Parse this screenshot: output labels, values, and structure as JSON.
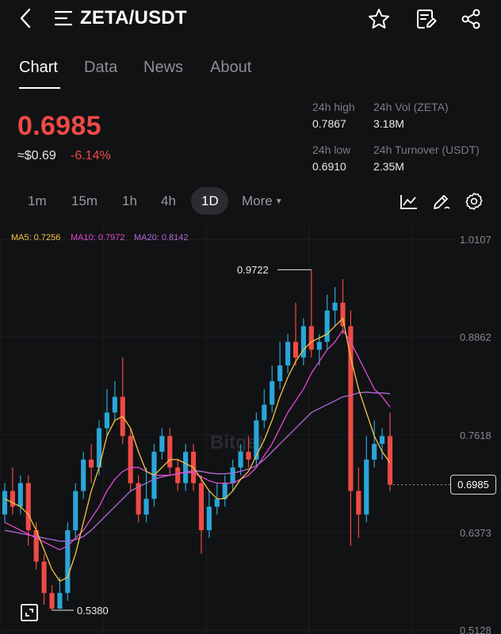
{
  "header": {
    "pair": "ZETA/USDT",
    "icons": [
      "back-icon",
      "menu-icon",
      "star-icon",
      "note-icon",
      "share-icon"
    ]
  },
  "tabs": [
    {
      "label": "Chart",
      "active": true
    },
    {
      "label": "Data",
      "active": false
    },
    {
      "label": "News",
      "active": false
    },
    {
      "label": "About",
      "active": false
    }
  ],
  "ticker": {
    "price": "0.6985",
    "fiat": "≈$0.69",
    "change": "-6.14%",
    "high_label": "24h high",
    "high_value": "0.7867",
    "vol_label": "24h Vol (ZETA)",
    "vol_value": "3.18M",
    "low_label": "24h low",
    "low_value": "0.6910",
    "turnover_label": "24h Turnover (USDT)",
    "turnover_value": "2.35M"
  },
  "timeframes": [
    "1m",
    "15m",
    "1h",
    "4h",
    "1D",
    "More"
  ],
  "selected_timeframe": "1D",
  "chart": {
    "ma5": "MA5: 0.7256",
    "ma10": "MA10: 0.7972",
    "ma20": "MA20: 0.8142",
    "y_labels": [
      "1.0107",
      "0.8862",
      "0.7618",
      "0.6373",
      "0.5128"
    ],
    "current_price": "0.6985",
    "high_marker": "0.9722",
    "low_marker": "0.5380",
    "watermark": "Bitget"
  },
  "chart_data": {
    "type": "candlestick",
    "y_range": [
      0.5128,
      1.0107
    ],
    "candles": [
      [
        0.66,
        0.69,
        0.65,
        0.7
      ],
      [
        0.69,
        0.67,
        0.66,
        0.72
      ],
      [
        0.67,
        0.7,
        0.66,
        0.71
      ],
      [
        0.7,
        0.64,
        0.62,
        0.71
      ],
      [
        0.64,
        0.6,
        0.59,
        0.65
      ],
      [
        0.6,
        0.56,
        0.545,
        0.61
      ],
      [
        0.56,
        0.54,
        0.538,
        0.57
      ],
      [
        0.54,
        0.56,
        0.54,
        0.58
      ],
      [
        0.56,
        0.64,
        0.55,
        0.65
      ],
      [
        0.64,
        0.69,
        0.63,
        0.7
      ],
      [
        0.69,
        0.73,
        0.68,
        0.74
      ],
      [
        0.73,
        0.72,
        0.7,
        0.75
      ],
      [
        0.72,
        0.77,
        0.71,
        0.78
      ],
      [
        0.77,
        0.79,
        0.76,
        0.82
      ],
      [
        0.79,
        0.81,
        0.78,
        0.83
      ],
      [
        0.81,
        0.76,
        0.75,
        0.86
      ],
      [
        0.76,
        0.7,
        0.69,
        0.77
      ],
      [
        0.7,
        0.66,
        0.65,
        0.71
      ],
      [
        0.66,
        0.68,
        0.65,
        0.72
      ],
      [
        0.68,
        0.74,
        0.67,
        0.75
      ],
      [
        0.74,
        0.76,
        0.73,
        0.77
      ],
      [
        0.76,
        0.72,
        0.71,
        0.77
      ],
      [
        0.72,
        0.7,
        0.69,
        0.73
      ],
      [
        0.7,
        0.74,
        0.69,
        0.75
      ],
      [
        0.74,
        0.7,
        0.69,
        0.75
      ],
      [
        0.7,
        0.64,
        0.61,
        0.71
      ],
      [
        0.64,
        0.67,
        0.63,
        0.69
      ],
      [
        0.67,
        0.68,
        0.66,
        0.7
      ],
      [
        0.68,
        0.7,
        0.67,
        0.71
      ],
      [
        0.7,
        0.72,
        0.69,
        0.73
      ],
      [
        0.72,
        0.74,
        0.71,
        0.75
      ],
      [
        0.74,
        0.73,
        0.72,
        0.76
      ],
      [
        0.73,
        0.78,
        0.72,
        0.79
      ],
      [
        0.78,
        0.8,
        0.77,
        0.82
      ],
      [
        0.8,
        0.83,
        0.79,
        0.85
      ],
      [
        0.83,
        0.85,
        0.82,
        0.88
      ],
      [
        0.85,
        0.88,
        0.84,
        0.89
      ],
      [
        0.88,
        0.86,
        0.85,
        0.93
      ],
      [
        0.86,
        0.9,
        0.85,
        0.91
      ],
      [
        0.9,
        0.87,
        0.86,
        0.972
      ],
      [
        0.87,
        0.88,
        0.85,
        0.89
      ],
      [
        0.88,
        0.92,
        0.87,
        0.94
      ],
      [
        0.92,
        0.93,
        0.9,
        0.95
      ],
      [
        0.93,
        0.9,
        0.89,
        0.96
      ],
      [
        0.9,
        0.69,
        0.62,
        0.92
      ],
      [
        0.69,
        0.66,
        0.63,
        0.72
      ],
      [
        0.66,
        0.73,
        0.65,
        0.76
      ],
      [
        0.73,
        0.75,
        0.72,
        0.78
      ],
      [
        0.75,
        0.76,
        0.73,
        0.77
      ],
      [
        0.76,
        0.698,
        0.69,
        0.79
      ]
    ],
    "ma5": [
      0.68,
      0.675,
      0.67,
      0.66,
      0.64,
      0.615,
      0.59,
      0.575,
      0.58,
      0.61,
      0.65,
      0.69,
      0.72,
      0.76,
      0.78,
      0.785,
      0.77,
      0.74,
      0.715,
      0.71,
      0.72,
      0.73,
      0.73,
      0.725,
      0.72,
      0.705,
      0.69,
      0.68,
      0.68,
      0.69,
      0.705,
      0.715,
      0.735,
      0.755,
      0.78,
      0.81,
      0.835,
      0.855,
      0.87,
      0.88,
      0.885,
      0.89,
      0.9,
      0.91,
      0.86,
      0.82,
      0.79,
      0.76,
      0.74,
      0.726
    ],
    "ma10": [
      0.65,
      0.645,
      0.64,
      0.635,
      0.63,
      0.625,
      0.62,
      0.615,
      0.62,
      0.63,
      0.64,
      0.655,
      0.67,
      0.69,
      0.705,
      0.715,
      0.72,
      0.72,
      0.715,
      0.71,
      0.71,
      0.71,
      0.712,
      0.714,
      0.713,
      0.708,
      0.703,
      0.7,
      0.7,
      0.7,
      0.705,
      0.71,
      0.72,
      0.735,
      0.75,
      0.77,
      0.79,
      0.805,
      0.82,
      0.84,
      0.855,
      0.87,
      0.88,
      0.895,
      0.88,
      0.86,
      0.84,
      0.82,
      0.81,
      0.797
    ],
    "ma20": [
      0.64,
      0.638,
      0.636,
      0.634,
      0.632,
      0.63,
      0.628,
      0.626,
      0.626,
      0.628,
      0.632,
      0.64,
      0.65,
      0.66,
      0.67,
      0.68,
      0.69,
      0.695,
      0.7,
      0.705,
      0.708,
      0.71,
      0.712,
      0.714,
      0.716,
      0.715,
      0.713,
      0.712,
      0.712,
      0.713,
      0.715,
      0.718,
      0.722,
      0.73,
      0.74,
      0.75,
      0.76,
      0.77,
      0.78,
      0.79,
      0.795,
      0.8,
      0.805,
      0.81,
      0.812,
      0.815,
      0.816,
      0.815,
      0.815,
      0.814
    ]
  },
  "colors": {
    "up": "#2aa5d8",
    "down": "#ef4a45",
    "ma5": "#f4c542",
    "ma10": "#e24ad0",
    "ma20": "#b46ad6"
  }
}
